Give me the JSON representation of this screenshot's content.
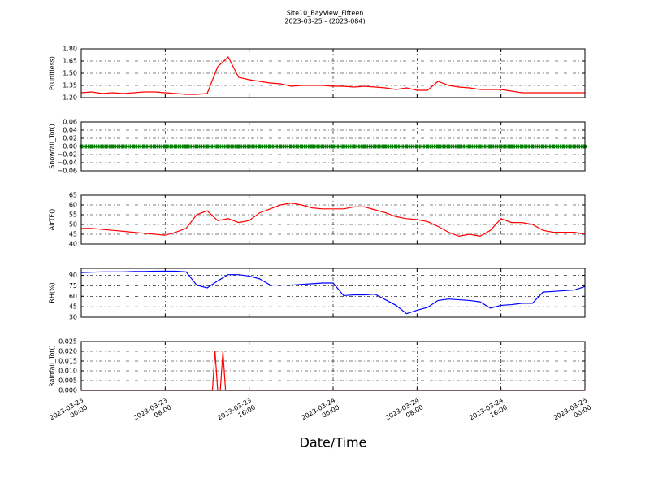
{
  "chart_data": [
    {
      "type": "line",
      "title": "Site10_BayView_Fifteen",
      "subtitle": "2023-03-25 - (2023-084)",
      "y_label": "P(unitless)",
      "color": "#ff0000",
      "grid": true,
      "x": [
        "2023-03-23 00:00",
        "2023-03-23 01:00",
        "2023-03-23 02:00",
        "2023-03-23 03:00",
        "2023-03-23 04:00",
        "2023-03-23 05:00",
        "2023-03-23 06:00",
        "2023-03-23 07:00",
        "2023-03-23 08:00",
        "2023-03-23 09:00",
        "2023-03-23 10:00",
        "2023-03-23 11:00",
        "2023-03-23 12:00",
        "2023-03-23 13:00",
        "2023-03-23 14:00",
        "2023-03-23 15:00",
        "2023-03-23 16:00",
        "2023-03-23 17:00",
        "2023-03-23 18:00",
        "2023-03-23 19:00",
        "2023-03-23 20:00",
        "2023-03-23 21:00",
        "2023-03-23 22:00",
        "2023-03-23 23:00",
        "2023-03-24 00:00",
        "2023-03-24 01:00",
        "2023-03-24 02:00",
        "2023-03-24 03:00",
        "2023-03-24 04:00",
        "2023-03-24 05:00",
        "2023-03-24 06:00",
        "2023-03-24 07:00",
        "2023-03-24 08:00",
        "2023-03-24 09:00",
        "2023-03-24 10:00",
        "2023-03-24 11:00",
        "2023-03-24 12:00",
        "2023-03-24 13:00",
        "2023-03-24 14:00",
        "2023-03-24 15:00",
        "2023-03-24 16:00",
        "2023-03-24 17:00",
        "2023-03-24 18:00",
        "2023-03-24 19:00",
        "2023-03-24 20:00",
        "2023-03-24 21:00",
        "2023-03-24 22:00",
        "2023-03-24 23:00",
        "2023-03-25 00:00"
      ],
      "values": [
        1.26,
        1.27,
        1.25,
        1.26,
        1.25,
        1.26,
        1.27,
        1.27,
        1.26,
        1.25,
        1.24,
        1.24,
        1.25,
        1.58,
        1.7,
        1.45,
        1.42,
        1.4,
        1.38,
        1.37,
        1.34,
        1.35,
        1.35,
        1.35,
        1.34,
        1.34,
        1.33,
        1.34,
        1.33,
        1.32,
        1.3,
        1.32,
        1.29,
        1.29,
        1.4,
        1.35,
        1.33,
        1.32,
        1.3,
        1.3,
        1.3,
        1.28,
        1.26,
        1.26,
        1.26,
        1.26,
        1.26,
        1.26,
        1.26
      ],
      "xlim": [
        "2023-03-23 00:00",
        "2023-03-25 00:00"
      ],
      "xticks": [
        "2023-03-23 00:00",
        "2023-03-23 08:00",
        "2023-03-23 16:00",
        "2023-03-24 00:00",
        "2023-03-24 08:00",
        "2023-03-24 16:00",
        "2023-03-25 00:00"
      ],
      "ylim": [
        1.2,
        1.8
      ],
      "yticks": [
        {
          "value": 1.2,
          "label": "1.20"
        },
        {
          "value": 1.35,
          "label": "1.35"
        },
        {
          "value": 1.5,
          "label": "1.50"
        },
        {
          "value": 1.65,
          "label": "1.65"
        },
        {
          "value": 1.8,
          "label": "1.80"
        }
      ]
    },
    {
      "type": "line",
      "y_label": "Snowfall_Tot()",
      "color": "#008000",
      "marker": true,
      "grid": true,
      "x": [
        "2023-03-23 00:00",
        "2023-03-23 01:00",
        "2023-03-23 02:00",
        "2023-03-23 03:00",
        "2023-03-23 04:00",
        "2023-03-23 05:00",
        "2023-03-23 06:00",
        "2023-03-23 07:00",
        "2023-03-23 08:00",
        "2023-03-23 09:00",
        "2023-03-23 10:00",
        "2023-03-23 11:00",
        "2023-03-23 12:00",
        "2023-03-23 13:00",
        "2023-03-23 14:00",
        "2023-03-23 15:00",
        "2023-03-23 16:00",
        "2023-03-23 17:00",
        "2023-03-23 18:00",
        "2023-03-23 19:00",
        "2023-03-23 20:00",
        "2023-03-23 21:00",
        "2023-03-23 22:00",
        "2023-03-23 23:00",
        "2023-03-24 00:00",
        "2023-03-24 01:00",
        "2023-03-24 02:00",
        "2023-03-24 03:00",
        "2023-03-24 04:00",
        "2023-03-24 05:00",
        "2023-03-24 06:00",
        "2023-03-24 07:00",
        "2023-03-24 08:00",
        "2023-03-24 09:00",
        "2023-03-24 10:00",
        "2023-03-24 11:00",
        "2023-03-24 12:00",
        "2023-03-24 13:00",
        "2023-03-24 14:00",
        "2023-03-24 15:00",
        "2023-03-24 16:00",
        "2023-03-24 17:00",
        "2023-03-24 18:00",
        "2023-03-24 19:00",
        "2023-03-24 20:00",
        "2023-03-24 21:00",
        "2023-03-24 22:00",
        "2023-03-24 23:00",
        "2023-03-25 00:00"
      ],
      "values": [
        0,
        0,
        0,
        0,
        0,
        0,
        0,
        0,
        0,
        0,
        0,
        0,
        0,
        0,
        0,
        0,
        0,
        0,
        0,
        0,
        0,
        0,
        0,
        0,
        0,
        0,
        0,
        0,
        0,
        0,
        0,
        0,
        0,
        0,
        0,
        0,
        0,
        0,
        0,
        0,
        0,
        0,
        0,
        0,
        0,
        0,
        0,
        0,
        0
      ],
      "xlim": [
        "2023-03-23 00:00",
        "2023-03-25 00:00"
      ],
      "xticks": [
        "2023-03-23 00:00",
        "2023-03-23 08:00",
        "2023-03-23 16:00",
        "2023-03-24 00:00",
        "2023-03-24 08:00",
        "2023-03-24 16:00",
        "2023-03-25 00:00"
      ],
      "ylim": [
        -0.06,
        0.06
      ],
      "yticks": [
        {
          "value": -0.06,
          "label": "−0.06"
        },
        {
          "value": -0.04,
          "label": "−0.04"
        },
        {
          "value": -0.02,
          "label": "−0.02"
        },
        {
          "value": 0,
          "label": "0.00"
        },
        {
          "value": 0.02,
          "label": "0.02"
        },
        {
          "value": 0.04,
          "label": "0.04"
        },
        {
          "value": 0.06,
          "label": "0.06"
        }
      ]
    },
    {
      "type": "line",
      "y_label": "AirTF()",
      "color": "#ff0000",
      "grid": true,
      "x": [
        "2023-03-23 00:00",
        "2023-03-23 01:00",
        "2023-03-23 02:00",
        "2023-03-23 03:00",
        "2023-03-23 04:00",
        "2023-03-23 05:00",
        "2023-03-23 06:00",
        "2023-03-23 07:00",
        "2023-03-23 08:00",
        "2023-03-23 09:00",
        "2023-03-23 10:00",
        "2023-03-23 11:00",
        "2023-03-23 12:00",
        "2023-03-23 13:00",
        "2023-03-23 14:00",
        "2023-03-23 15:00",
        "2023-03-23 16:00",
        "2023-03-23 17:00",
        "2023-03-23 18:00",
        "2023-03-23 19:00",
        "2023-03-23 20:00",
        "2023-03-23 21:00",
        "2023-03-23 22:00",
        "2023-03-23 23:00",
        "2023-03-24 00:00",
        "2023-03-24 01:00",
        "2023-03-24 02:00",
        "2023-03-24 03:00",
        "2023-03-24 04:00",
        "2023-03-24 05:00",
        "2023-03-24 06:00",
        "2023-03-24 07:00",
        "2023-03-24 08:00",
        "2023-03-24 09:00",
        "2023-03-24 10:00",
        "2023-03-24 11:00",
        "2023-03-24 12:00",
        "2023-03-24 13:00",
        "2023-03-24 14:00",
        "2023-03-24 15:00",
        "2023-03-24 16:00",
        "2023-03-24 17:00",
        "2023-03-24 18:00",
        "2023-03-24 19:00",
        "2023-03-24 20:00",
        "2023-03-24 21:00",
        "2023-03-24 22:00",
        "2023-03-24 23:00",
        "2023-03-25 00:00"
      ],
      "values": [
        48,
        48,
        47.5,
        47,
        46.5,
        46,
        45.5,
        45,
        44.5,
        46,
        48,
        55,
        57,
        52,
        53,
        51,
        52,
        56,
        58,
        60,
        61,
        60,
        58.5,
        58,
        58,
        58,
        59,
        59,
        57.5,
        56,
        54,
        53,
        52.5,
        51.5,
        49,
        46,
        44,
        45,
        44,
        47,
        53,
        51,
        51,
        50,
        47,
        46,
        46,
        46,
        45
      ],
      "xlim": [
        "2023-03-23 00:00",
        "2023-03-25 00:00"
      ],
      "xticks": [
        "2023-03-23 00:00",
        "2023-03-23 08:00",
        "2023-03-23 16:00",
        "2023-03-24 00:00",
        "2023-03-24 08:00",
        "2023-03-24 16:00",
        "2023-03-25 00:00"
      ],
      "ylim": [
        40,
        65
      ],
      "yticks": [
        40,
        45,
        50,
        55,
        60,
        65
      ]
    },
    {
      "type": "line",
      "y_label": "RH(%)",
      "color": "#0000ff",
      "grid": true,
      "x": [
        "2023-03-23 00:00",
        "2023-03-23 01:00",
        "2023-03-23 02:00",
        "2023-03-23 03:00",
        "2023-03-23 04:00",
        "2023-03-23 05:00",
        "2023-03-23 06:00",
        "2023-03-23 07:00",
        "2023-03-23 08:00",
        "2023-03-23 09:00",
        "2023-03-23 10:00",
        "2023-03-23 11:00",
        "2023-03-23 12:00",
        "2023-03-23 13:00",
        "2023-03-23 14:00",
        "2023-03-23 15:00",
        "2023-03-23 16:00",
        "2023-03-23 17:00",
        "2023-03-23 18:00",
        "2023-03-23 19:00",
        "2023-03-23 20:00",
        "2023-03-23 21:00",
        "2023-03-23 22:00",
        "2023-03-23 23:00",
        "2023-03-24 00:00",
        "2023-03-24 01:00",
        "2023-03-24 02:00",
        "2023-03-24 03:00",
        "2023-03-24 04:00",
        "2023-03-24 05:00",
        "2023-03-24 06:00",
        "2023-03-24 07:00",
        "2023-03-24 08:00",
        "2023-03-24 09:00",
        "2023-03-24 10:00",
        "2023-03-24 11:00",
        "2023-03-24 12:00",
        "2023-03-24 13:00",
        "2023-03-24 14:00",
        "2023-03-24 15:00",
        "2023-03-24 16:00",
        "2023-03-24 17:00",
        "2023-03-24 18:00",
        "2023-03-24 19:00",
        "2023-03-24 20:00",
        "2023-03-24 21:00",
        "2023-03-24 22:00",
        "2023-03-24 23:00",
        "2023-03-25 00:00"
      ],
      "values": [
        94,
        94.5,
        95,
        95,
        95,
        95.5,
        95.5,
        96,
        96,
        96,
        95,
        76,
        72,
        82,
        91,
        91,
        89,
        85,
        76,
        76,
        76,
        77,
        78,
        79,
        79,
        61,
        62,
        62,
        63,
        55,
        47,
        35,
        40,
        44,
        54,
        56,
        55,
        54,
        52,
        43,
        47,
        48,
        50,
        50,
        66,
        67,
        68,
        69,
        74
      ],
      "xlim": [
        "2023-03-23 00:00",
        "2023-03-25 00:00"
      ],
      "xticks": [
        "2023-03-23 00:00",
        "2023-03-23 08:00",
        "2023-03-23 16:00",
        "2023-03-24 00:00",
        "2023-03-24 08:00",
        "2023-03-24 16:00",
        "2023-03-25 00:00"
      ],
      "ylim": [
        30,
        100
      ],
      "yticks": [
        30,
        45,
        60,
        75,
        90
      ]
    },
    {
      "type": "line",
      "y_label": "Rainfall_Tot()",
      "x_label": "Date/Time",
      "color": "#ff0000",
      "grid": true,
      "x": [
        "2023-03-23 00:00",
        "2023-03-23 12:30",
        "2023-03-23 12:45",
        "2023-03-23 13:00",
        "2023-03-23 13:15",
        "2023-03-23 13:30",
        "2023-03-23 13:45",
        "2023-03-25 00:00"
      ],
      "values": [
        0,
        0,
        0.02,
        0,
        0,
        0.02,
        0,
        0
      ],
      "xlim": [
        "2023-03-23 00:00",
        "2023-03-25 00:00"
      ],
      "xticks": [
        {
          "value": "2023-03-23 00:00",
          "label": [
            "2023-03-23",
            "00:00"
          ]
        },
        {
          "value": "2023-03-23 08:00",
          "label": [
            "2023-03-23",
            "08:00"
          ]
        },
        {
          "value": "2023-03-23 16:00",
          "label": [
            "2023-03-23",
            "16:00"
          ]
        },
        {
          "value": "2023-03-24 00:00",
          "label": [
            "2023-03-24",
            "00:00"
          ]
        },
        {
          "value": "2023-03-24 08:00",
          "label": [
            "2023-03-24",
            "08:00"
          ]
        },
        {
          "value": "2023-03-24 16:00",
          "label": [
            "2023-03-24",
            "16:00"
          ]
        },
        {
          "value": "2023-03-25 00:00",
          "label": [
            "2023-03-25",
            "00:00"
          ]
        }
      ],
      "ylim": [
        0,
        0.025
      ],
      "yticks": [
        {
          "value": 0,
          "label": "0.000"
        },
        {
          "value": 0.005,
          "label": "0.005"
        },
        {
          "value": 0.01,
          "label": "0.010"
        },
        {
          "value": 0.015,
          "label": "0.015"
        },
        {
          "value": 0.02,
          "label": "0.020"
        },
        {
          "value": 0.025,
          "label": "0.025"
        }
      ]
    }
  ]
}
